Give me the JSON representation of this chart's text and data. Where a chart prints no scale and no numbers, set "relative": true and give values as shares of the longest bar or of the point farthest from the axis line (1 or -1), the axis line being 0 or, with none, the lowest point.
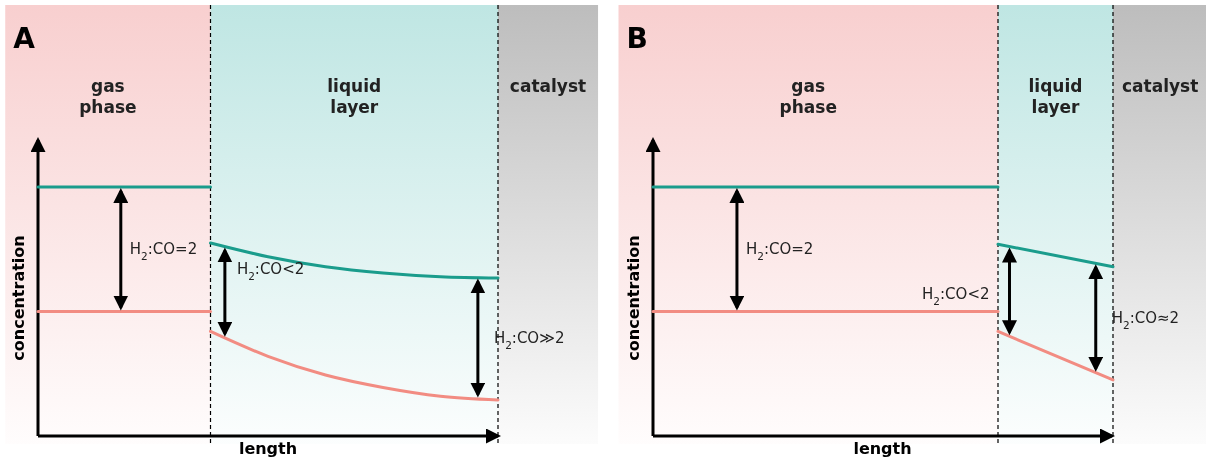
{
  "chart_data": [
    {
      "type": "line",
      "title": "A",
      "xlabel": "length",
      "ylabel": "concentration",
      "relative": true,
      "categories": [
        null,
        null,
        null,
        null,
        null,
        null,
        null,
        null,
        null
      ],
      "series": [
        {
          "color": "#1a9c8c",
          "values": [
            1,
            1,
            1,
            1,
            null,
            null,
            null,
            null,
            null
          ]
        },
        {
          "color": "#f28c82",
          "values": [
            0.5,
            0.5,
            0.5,
            0.5,
            null,
            null,
            null,
            null,
            null
          ]
        },
        {
          "color": "#1a9c8c",
          "values": [
            null,
            null,
            null,
            0.775,
            0.72,
            0.68,
            0.655,
            0.64,
            0.635
          ]
        },
        {
          "color": "#f28c82",
          "values": [
            null,
            null,
            null,
            0.42,
            0.32,
            0.245,
            0.195,
            0.16,
            0.145
          ]
        }
      ],
      "annotations": [
        "gas phase",
        "liquid layer",
        "catalyst",
        "H$_{2}$:CO=2",
        "H$_{2}$:CO<2",
        "H$_{2}$:CO≫2"
      ]
    },
    {
      "type": "line",
      "title": "B",
      "xlabel": "length",
      "ylabel": "concentration",
      "relative": true,
      "categories": [
        null,
        null,
        null,
        null,
        null
      ],
      "series": [
        {
          "color": "#1a9c8c",
          "values": [
            1,
            1,
            1,
            1,
            null
          ]
        },
        {
          "color": "#f28c82",
          "values": [
            0.5,
            0.5,
            0.5,
            0.5,
            null
          ]
        },
        {
          "color": "#1a9c8c",
          "values": [
            null,
            null,
            null,
            0.77,
            0.68
          ]
        },
        {
          "color": "#f28c82",
          "values": [
            null,
            null,
            null,
            0.42,
            0.225
          ]
        }
      ],
      "annotations": [
        "gas phase",
        "liquid layer",
        "catalyst",
        "H$_{2}$:CO=2",
        "H$_{2}$:CO<2",
        "H$_{2}$:CO≈2"
      ]
    }
  ]
}
